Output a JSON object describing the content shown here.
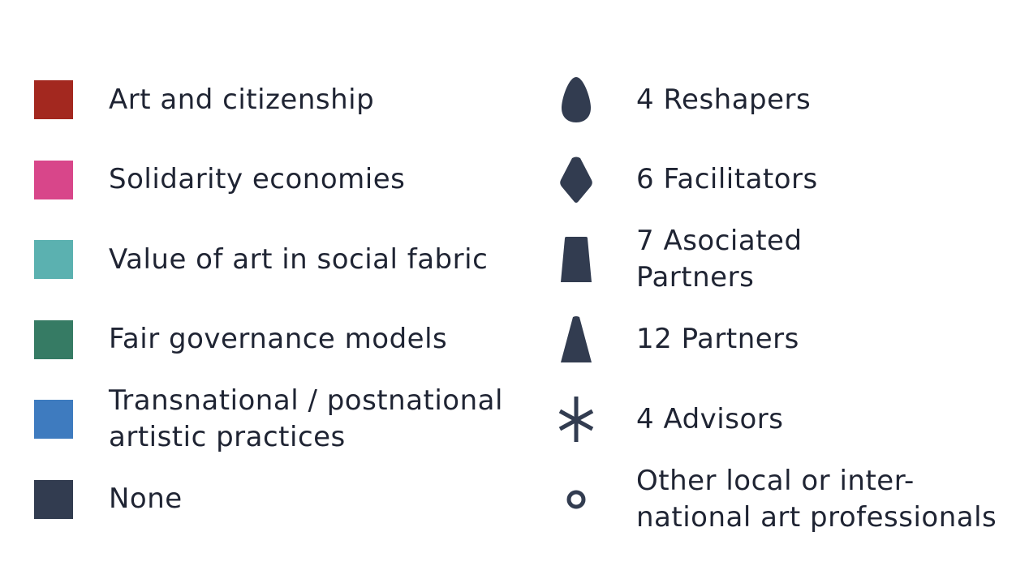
{
  "themes": {
    "items": [
      {
        "label": "Art and citizenship",
        "color": "#a3281f"
      },
      {
        "label": "Solidarity economies",
        "color": "#d8468a"
      },
      {
        "label": "Value of art in social fabric",
        "color": "#5bb1b0"
      },
      {
        "label": "Fair governance models",
        "color": "#367b64"
      },
      {
        "label_line1": "Transnational / postnational",
        "label_line2": "artistic practices",
        "color": "#3e7bbf"
      },
      {
        "label": "None",
        "color": "#323c50"
      }
    ]
  },
  "roles": {
    "shape_color": "#323c50",
    "items": [
      {
        "label": "4 Reshapers",
        "icon": "drop-icon"
      },
      {
        "label": "6 Facilitators",
        "icon": "diamond-drop-icon"
      },
      {
        "label_line1": "7 Asociated",
        "label_line2": "Partners",
        "icon": "trapezoid-icon"
      },
      {
        "label": "12 Partners",
        "icon": "cone-icon"
      },
      {
        "label": "4 Advisors",
        "icon": "asterisk-icon"
      },
      {
        "label_line1": "Other local or inter-",
        "label_line2": "national art professionals",
        "icon": "ring-icon"
      }
    ]
  }
}
